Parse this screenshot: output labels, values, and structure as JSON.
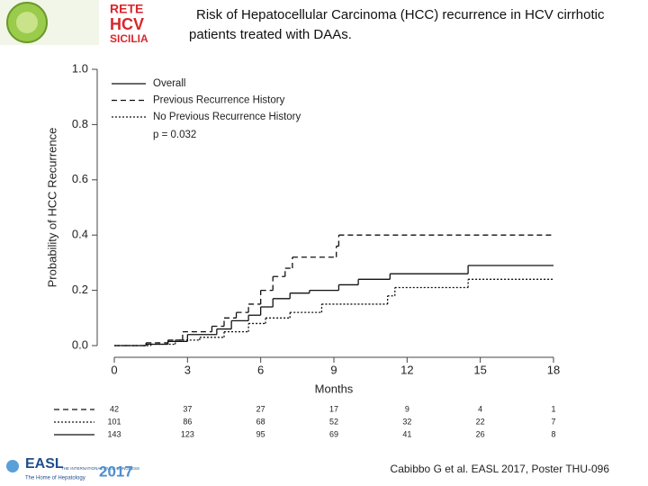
{
  "header": {
    "logo_lines": [
      "RETE",
      "HCV",
      "SICILIA"
    ],
    "title": "Risk of Hepatocellular Carcinoma (HCC) recurrence in HCV cirrhotic patients treated with DAAs."
  },
  "chart_data": {
    "type": "step",
    "xlabel": "Months",
    "ylabel": "Probability of HCC Recurrence",
    "annotation": "p = 0.032",
    "xlim": [
      0,
      18
    ],
    "ylim": [
      0,
      1
    ],
    "xticks": [
      0,
      3,
      6,
      9,
      12,
      15,
      18
    ],
    "yticks": [
      {
        "value": 0,
        "label": "0.0"
      },
      0.2,
      0.4,
      0.6,
      0.8,
      {
        "value": 1,
        "label": "1.0"
      }
    ],
    "legend": "top-left",
    "series": [
      {
        "name": "Overall",
        "color": "#111111",
        "dash": "solid",
        "x": [
          0,
          1.3,
          2.2,
          3.0,
          4.2,
          4.8,
          5.5,
          6.0,
          6.5,
          7.2,
          8.0,
          9.2,
          10.0,
          11.3,
          14.5
        ],
        "values": [
          0,
          0.005,
          0.015,
          0.04,
          0.06,
          0.09,
          0.11,
          0.14,
          0.17,
          0.19,
          0.2,
          0.22,
          0.24,
          0.26,
          0.29
        ],
        "at_risk": [
          143,
          123,
          95,
          69,
          41,
          26,
          8
        ]
      },
      {
        "name": "Previous Recurrence History",
        "color": "#111111",
        "dash": "dashed",
        "x": [
          0,
          1.3,
          2.2,
          2.8,
          4.0,
          4.5,
          5.0,
          5.5,
          6.0,
          6.5,
          7.0,
          7.3,
          9.1,
          9.2
        ],
        "values": [
          0,
          0.01,
          0.02,
          0.05,
          0.07,
          0.1,
          0.12,
          0.15,
          0.2,
          0.25,
          0.28,
          0.32,
          0.36,
          0.4
        ],
        "at_risk": [
          42,
          37,
          27,
          17,
          9,
          4,
          1
        ]
      },
      {
        "name": "No Previous Recurrence History",
        "color": "#111111",
        "dash": "dotted",
        "x": [
          0,
          1.5,
          2.5,
          3.5,
          4.5,
          5.5,
          6.2,
          7.2,
          8.5,
          11.2,
          11.5,
          14.5
        ],
        "values": [
          0,
          0.005,
          0.02,
          0.03,
          0.05,
          0.08,
          0.1,
          0.12,
          0.15,
          0.18,
          0.21,
          0.24
        ],
        "at_risk": [
          101,
          86,
          68,
          52,
          32,
          22,
          7
        ]
      }
    ],
    "at_risk_order": [
      1,
      2,
      0
    ]
  },
  "footer": {
    "easl": "EASL",
    "easl_tagline": "The Home of Hepatology",
    "congress": "THE INTERNATIONAL LIVER CONGRESS",
    "year": "2017",
    "citation": "Cabibbo G et al. EASL 2017, Poster THU-096"
  }
}
